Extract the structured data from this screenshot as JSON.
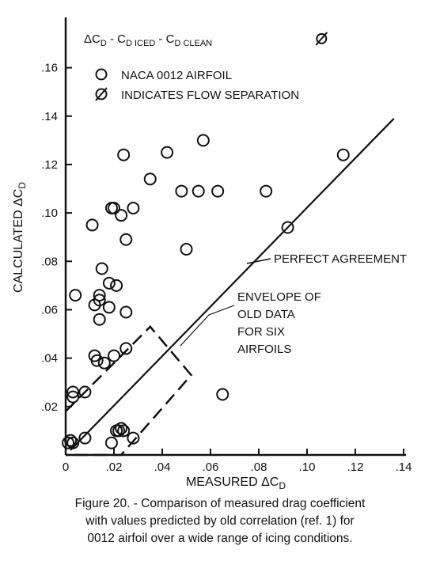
{
  "chart_data": {
    "type": "scatter",
    "xlabel": "MEASURED ΔC",
    "xlabel_sub": "D",
    "ylabel": "CALCULATED ΔC",
    "ylabel_sub": "D",
    "xlim": [
      0,
      0.14
    ],
    "ylim": [
      0,
      0.17
    ],
    "x_ticks": [
      {
        "value": 0,
        "label": "0"
      },
      {
        "value": 0.02,
        "label": ".02"
      },
      {
        "value": 0.04,
        "label": ".04"
      },
      {
        "value": 0.06,
        "label": ".06"
      },
      {
        "value": 0.08,
        "label": ".08"
      },
      {
        "value": 0.1,
        "label": ".10"
      },
      {
        "value": 0.12,
        "label": ".12"
      },
      {
        "value": 0.14,
        "label": ".14"
      }
    ],
    "y_ticks": [
      {
        "value": 0.02,
        "label": ".02"
      },
      {
        "value": 0.04,
        "label": ".04"
      },
      {
        "value": 0.06,
        "label": ".06"
      },
      {
        "value": 0.08,
        "label": ".08"
      },
      {
        "value": 0.1,
        "label": ".10"
      },
      {
        "value": 0.12,
        "label": ".12"
      },
      {
        "value": 0.14,
        "label": ".14"
      },
      {
        "value": 0.16,
        "label": ".16"
      }
    ],
    "grid": false,
    "definition": {
      "delta": "ΔC",
      "sub1": "D",
      "mid": " - C",
      "sub2": "D ICED",
      "mid2": " - C",
      "sub3": "D CLEAN"
    },
    "legend": [
      {
        "symbol": "circle",
        "text": "NACA 0012 AIRFOIL"
      },
      {
        "symbol": "slashed-circle",
        "text": "INDICATES FLOW SEPARATION"
      }
    ],
    "series": [
      {
        "name": "NACA 0012 AIRFOIL",
        "marker": "circle",
        "points": [
          [
            0.001,
            0.005
          ],
          [
            0.002,
            0.006
          ],
          [
            0.003,
            0.005
          ],
          [
            0.003,
            0.024
          ],
          [
            0.003,
            0.026
          ],
          [
            0.004,
            0.066
          ],
          [
            0.008,
            0.007
          ],
          [
            0.008,
            0.026
          ],
          [
            0.011,
            0.095
          ],
          [
            0.012,
            0.041
          ],
          [
            0.012,
            0.062
          ],
          [
            0.013,
            0.039
          ],
          [
            0.014,
            0.064
          ],
          [
            0.014,
            0.056
          ],
          [
            0.014,
            0.066
          ],
          [
            0.015,
            0.077
          ],
          [
            0.016,
            0.038
          ],
          [
            0.018,
            0.061
          ],
          [
            0.018,
            0.071
          ],
          [
            0.019,
            0.005
          ],
          [
            0.019,
            0.102
          ],
          [
            0.02,
            0.041
          ],
          [
            0.02,
            0.102
          ],
          [
            0.021,
            0.01
          ],
          [
            0.021,
            0.07
          ],
          [
            0.022,
            0.01
          ],
          [
            0.023,
            0.011
          ],
          [
            0.023,
            0.099
          ],
          [
            0.024,
            0.01
          ],
          [
            0.024,
            0.124
          ],
          [
            0.025,
            0.044
          ],
          [
            0.025,
            0.059
          ],
          [
            0.025,
            0.089
          ],
          [
            0.028,
            0.007
          ],
          [
            0.028,
            0.102
          ],
          [
            0.035,
            0.114
          ],
          [
            0.042,
            0.125
          ],
          [
            0.048,
            0.109
          ],
          [
            0.05,
            0.085
          ],
          [
            0.055,
            0.109
          ],
          [
            0.057,
            0.13
          ],
          [
            0.063,
            0.109
          ],
          [
            0.065,
            0.025
          ],
          [
            0.083,
            0.109
          ],
          [
            0.092,
            0.094
          ],
          [
            0.115,
            0.124
          ]
        ]
      },
      {
        "name": "flow separation",
        "marker": "slashed-circle",
        "points": [
          [
            0.106,
            0.172
          ]
        ]
      }
    ],
    "lines": [
      {
        "name": "perfect-agreement",
        "style": "solid",
        "points": [
          [
            0.002,
            0.002
          ],
          [
            0.136,
            0.139
          ]
        ]
      },
      {
        "name": "envelope",
        "style": "dashed",
        "points": [
          [
            0,
            0.018
          ],
          [
            0.035,
            0.053
          ],
          [
            0.052,
            0.033
          ],
          [
            0.023,
            0
          ],
          [
            0,
            0
          ]
        ]
      }
    ],
    "annotations": [
      {
        "name": "perfect-agreement-label",
        "lines": [
          "PERFECT AGREEMENT"
        ],
        "anchor": [
          0.074,
          0.076
        ]
      },
      {
        "name": "envelope-label",
        "lines": [
          "ENVELOPE OF",
          "OLD DATA",
          "FOR SIX",
          "AIRFOILS"
        ],
        "anchor": [
          0.042,
          0.044
        ]
      }
    ]
  },
  "caption": [
    "Figure 20. - Comparison of measured drag coefficient",
    "with values predicted by old correlation (ref. 1) for",
    "0012 airfoil over a wide range of icing conditions."
  ]
}
